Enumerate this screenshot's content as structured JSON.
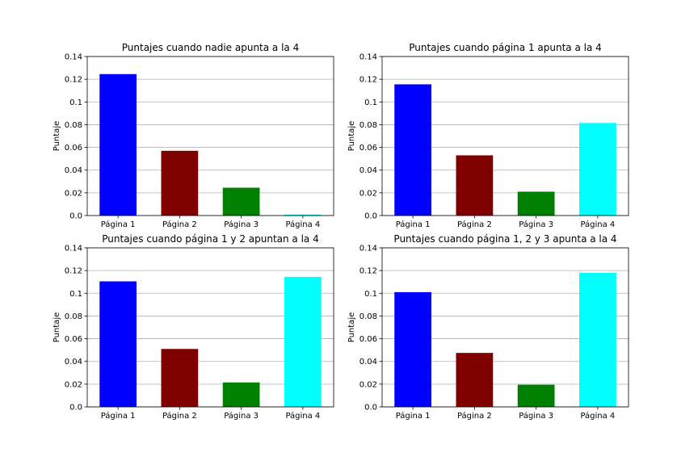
{
  "colors": {
    "grid": "#b0b0b0",
    "axis": "#000000",
    "background": "#ffffff"
  },
  "chart_data": [
    {
      "type": "bar",
      "title": "Puntajes cuando nadie apunta a la 4",
      "xlabel": "",
      "ylabel": "Puntaje",
      "categories": [
        "Página 1",
        "Página 2",
        "Página 3",
        "Página 4"
      ],
      "values": [
        0.1245,
        0.057,
        0.0245,
        0.0009
      ],
      "bar_colors": [
        "#0000ff",
        "#800000",
        "#008000",
        "#00ffff"
      ],
      "ylim": [
        0,
        0.14
      ],
      "yticks": [
        0.0,
        0.02,
        0.04,
        0.06,
        0.08,
        0.1,
        0.12,
        0.14
      ],
      "ytick_labels": [
        "0.0",
        "0.02",
        "0.04",
        "0.06",
        "0.08",
        "0.1",
        "0.12",
        "0.14"
      ],
      "grid": "y"
    },
    {
      "type": "bar",
      "title": "Puntajes cuando página 1 apunta a la 4",
      "xlabel": "",
      "ylabel": "Puntaje",
      "categories": [
        "Página 1",
        "Página 2",
        "Página 3",
        "Página 4"
      ],
      "values": [
        0.1155,
        0.053,
        0.021,
        0.0815
      ],
      "bar_colors": [
        "#0000ff",
        "#800000",
        "#008000",
        "#00ffff"
      ],
      "ylim": [
        0,
        0.14
      ],
      "yticks": [
        0.0,
        0.02,
        0.04,
        0.06,
        0.08,
        0.1,
        0.12,
        0.14
      ],
      "ytick_labels": [
        "0.0",
        "0.02",
        "0.04",
        "0.06",
        "0.08",
        "0.1",
        "0.12",
        "0.14"
      ],
      "grid": "y"
    },
    {
      "type": "bar",
      "title": "Puntajes cuando página 1 y 2 apuntan a la 4",
      "xlabel": "",
      "ylabel": "Puntaje",
      "categories": [
        "Página 1",
        "Página 2",
        "Página 3",
        "Página 4"
      ],
      "values": [
        0.1105,
        0.051,
        0.0215,
        0.1145
      ],
      "bar_colors": [
        "#0000ff",
        "#800000",
        "#008000",
        "#00ffff"
      ],
      "ylim": [
        0,
        0.14
      ],
      "yticks": [
        0.0,
        0.02,
        0.04,
        0.06,
        0.08,
        0.1,
        0.12,
        0.14
      ],
      "ytick_labels": [
        "0.0",
        "0.02",
        "0.04",
        "0.06",
        "0.08",
        "0.1",
        "0.12",
        "0.14"
      ],
      "grid": "y"
    },
    {
      "type": "bar",
      "title": "Puntajes cuando página 1, 2 y 3 apunta a la 4",
      "xlabel": "",
      "ylabel": "Puntaje",
      "categories": [
        "Página 1",
        "Página 2",
        "Página 3",
        "Página 4"
      ],
      "values": [
        0.101,
        0.0475,
        0.0195,
        0.118
      ],
      "bar_colors": [
        "#0000ff",
        "#800000",
        "#008000",
        "#00ffff"
      ],
      "ylim": [
        0,
        0.14
      ],
      "yticks": [
        0.0,
        0.02,
        0.04,
        0.06,
        0.08,
        0.1,
        0.12,
        0.14
      ],
      "ytick_labels": [
        "0.0",
        "0.02",
        "0.04",
        "0.06",
        "0.08",
        "0.1",
        "0.12",
        "0.14"
      ],
      "grid": "y"
    }
  ]
}
